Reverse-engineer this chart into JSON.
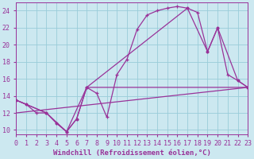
{
  "xlabel": "Windchill (Refroidissement éolien,°C)",
  "bg_color": "#cce8f0",
  "grid_color": "#99ccd9",
  "line_color": "#993399",
  "xlim": [
    0,
    23
  ],
  "ylim": [
    9.5,
    25.0
  ],
  "yticks": [
    10,
    12,
    14,
    16,
    18,
    20,
    22,
    24
  ],
  "xticks": [
    0,
    1,
    2,
    3,
    4,
    5,
    6,
    7,
    8,
    9,
    10,
    11,
    12,
    13,
    14,
    15,
    16,
    17,
    18,
    19,
    20,
    21,
    22,
    23
  ],
  "line1_x": [
    0,
    1,
    2,
    3,
    4,
    5,
    6,
    7,
    8,
    9,
    10,
    11,
    12,
    13,
    14,
    15,
    16,
    17,
    18,
    19,
    20,
    21,
    22,
    23
  ],
  "line1_y": [
    13.5,
    13.0,
    12.0,
    12.0,
    10.8,
    9.8,
    11.3,
    15.0,
    14.3,
    11.5,
    16.5,
    18.3,
    21.8,
    23.5,
    24.0,
    24.3,
    24.5,
    24.3,
    23.8,
    19.2,
    22.0,
    16.5,
    15.8,
    15.0
  ],
  "line2_x": [
    0,
    1,
    3,
    4,
    5,
    6,
    7,
    17,
    19,
    20,
    22,
    23
  ],
  "line2_y": [
    13.5,
    13.0,
    12.0,
    10.8,
    9.8,
    11.3,
    15.0,
    24.3,
    19.2,
    22.0,
    15.8,
    15.0
  ],
  "line3_x": [
    0,
    3,
    5,
    7,
    23
  ],
  "line3_y": [
    13.5,
    12.0,
    9.8,
    15.0,
    15.0
  ],
  "line4_x": [
    0,
    23
  ],
  "line4_y": [
    12.0,
    15.0
  ],
  "xlabel_fontsize": 6.5,
  "tick_fontsize": 6.0
}
